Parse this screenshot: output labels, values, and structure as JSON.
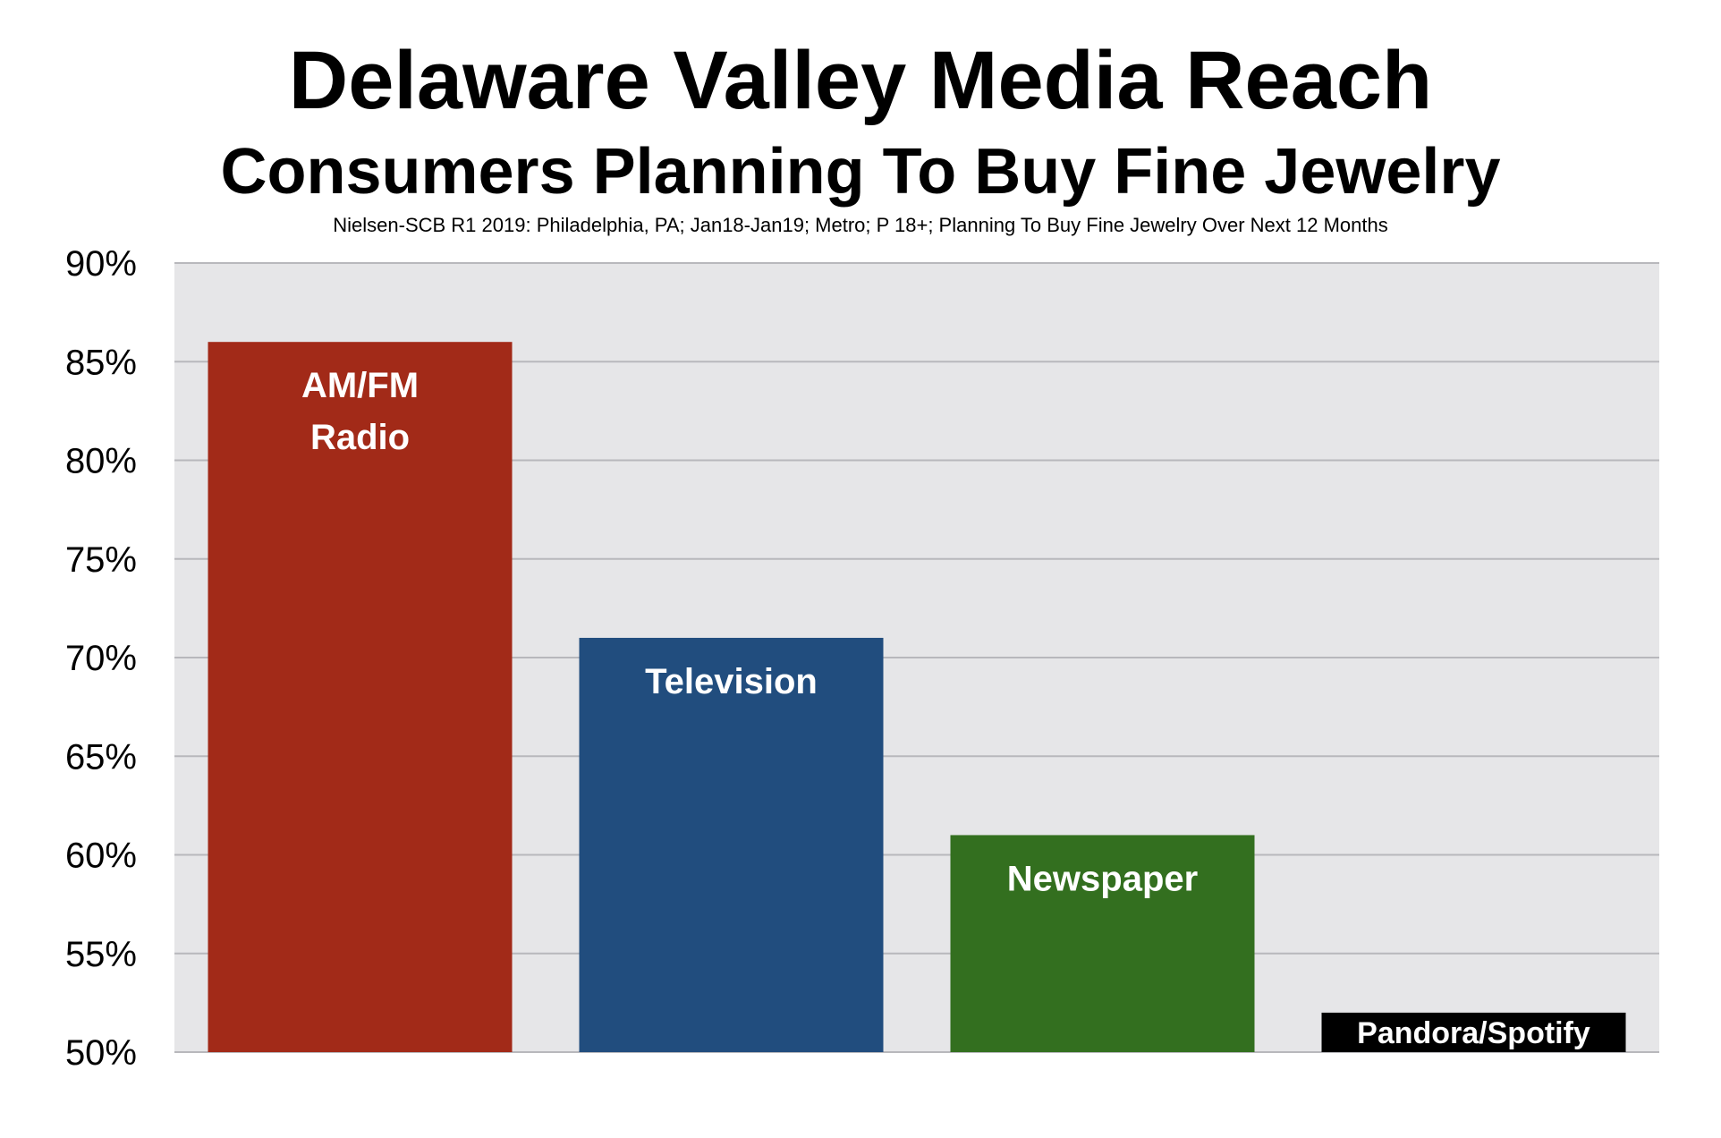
{
  "chart_data": {
    "type": "bar",
    "title": "Delaware Valley Media Reach",
    "subtitle": "Consumers Planning To Buy Fine Jewelry",
    "source_note": "Nielsen-SCB R1 2019: Philadelphia, PA; Jan18-Jan19; Metro; P 18+;  Planning To Buy Fine Jewelry Over Next 12 Months",
    "xlabel": "",
    "ylabel": "",
    "ylim": [
      50,
      90
    ],
    "yticks": [
      50,
      55,
      60,
      65,
      70,
      75,
      80,
      85,
      90
    ],
    "ytick_labels": [
      "50%",
      "55%",
      "60%",
      "65%",
      "70%",
      "75%",
      "80%",
      "85%",
      "90%"
    ],
    "grid": true,
    "legend": "none",
    "categories": [
      [
        "AM/FM",
        "Radio"
      ],
      [
        "Television"
      ],
      [
        "Newspaper"
      ],
      [
        "Pandora/Spotify"
      ]
    ],
    "values": [
      86,
      71,
      61,
      52
    ],
    "colors": [
      "#a22a18",
      "#214d7e",
      "#336f1f",
      "#000000"
    ],
    "plot_background": "#e6e6e8",
    "gridline_color": "#b8b8bc"
  }
}
